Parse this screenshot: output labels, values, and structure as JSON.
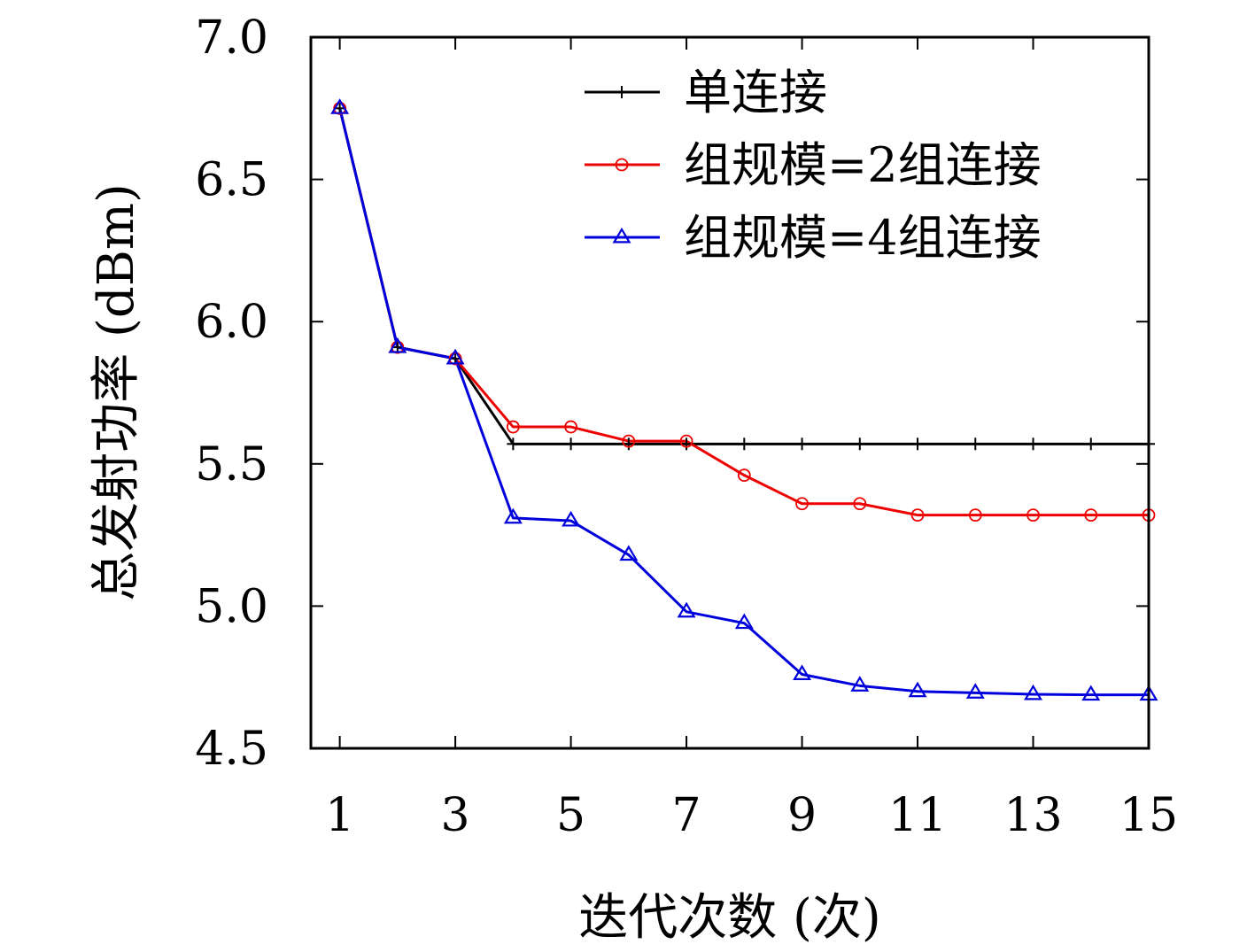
{
  "chart_data": {
    "type": "line",
    "xlabel": "迭代次数 (次)",
    "ylabel": "总发射功率 (dBm)",
    "xlim": [
      0.5,
      15
    ],
    "ylim": [
      4.5,
      7.0
    ],
    "x_ticks": [
      1,
      3,
      5,
      7,
      9,
      11,
      13,
      15
    ],
    "y_ticks": [
      4.5,
      5.0,
      5.5,
      6.0,
      6.5,
      7.0
    ],
    "y_tick_labels": [
      "4.5",
      "5.0",
      "5.5",
      "6.0",
      "6.5",
      "7.0"
    ],
    "x_tick_labels": [
      "1",
      "3",
      "5",
      "7",
      "9",
      "11",
      "13",
      "15"
    ],
    "grid": false,
    "legend_position": "top-right",
    "x": [
      1,
      2,
      3,
      4,
      5,
      6,
      7,
      8,
      9,
      10,
      11,
      12,
      13,
      14,
      15
    ],
    "series": [
      {
        "name": "单连接",
        "color": "#000000",
        "marker": "plus",
        "values": [
          6.75,
          5.91,
          5.87,
          5.57,
          5.57,
          5.57,
          5.57,
          5.57,
          5.57,
          5.57,
          5.57,
          5.57,
          5.57,
          5.57,
          5.57
        ]
      },
      {
        "name": "组规模=2组连接",
        "color": "#ee0000",
        "marker": "circle",
        "values": [
          6.75,
          5.91,
          5.87,
          5.63,
          5.63,
          5.58,
          5.58,
          5.46,
          5.36,
          5.36,
          5.32,
          5.32,
          5.32,
          5.32,
          5.32
        ]
      },
      {
        "name": "组规模=4组连接",
        "color": "#0000dd",
        "marker": "triangle",
        "values": [
          6.75,
          5.91,
          5.87,
          5.31,
          5.3,
          5.18,
          4.98,
          4.94,
          4.76,
          4.72,
          4.7,
          4.695,
          4.69,
          4.688,
          4.688
        ]
      }
    ]
  }
}
